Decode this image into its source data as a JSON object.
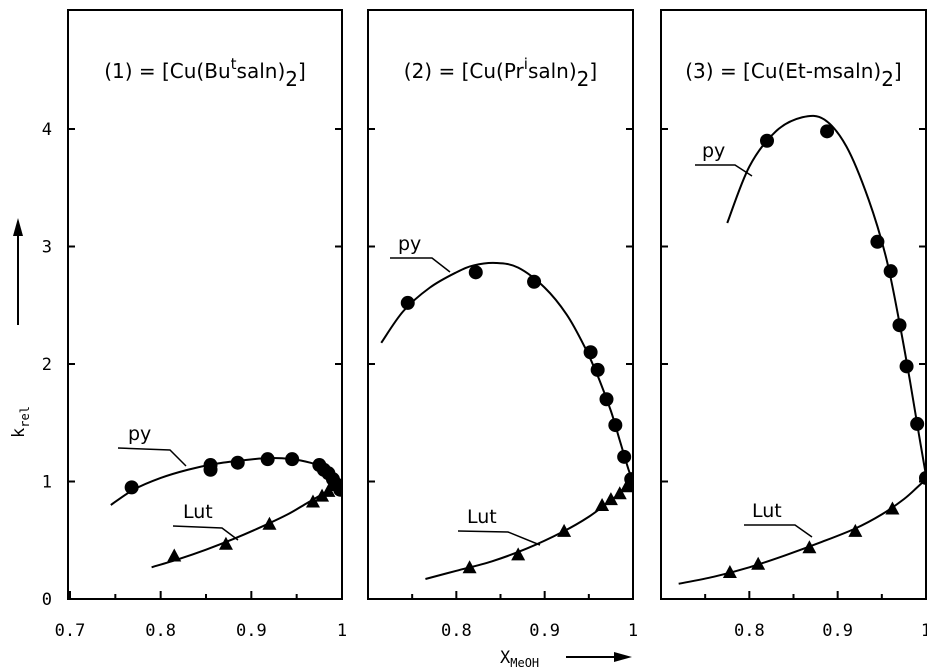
{
  "chart_data": [
    {
      "type": "line",
      "title": "(1) = [Cu(Bu^t saln)_2]",
      "title_parts": {
        "prefix": "(1) = [Cu(Bu",
        "sup": "t",
        "mid": "saln)",
        "sub": "2",
        "suffix": "]"
      },
      "xlabel": "X_MeOH",
      "ylabel": "k_rel",
      "xlim": [
        0.7,
        1.0
      ],
      "ylim": [
        0,
        4.9
      ],
      "x_ticks": [
        "0.7",
        "0.8",
        "0.9",
        "1"
      ],
      "y_ticks": [
        "0",
        "1",
        "2",
        "3",
        "4"
      ],
      "series": [
        {
          "name": "py",
          "marker": "circle",
          "points": [
            [
              0.768,
              0.95
            ],
            [
              0.855,
              1.1
            ],
            [
              0.855,
              1.14
            ],
            [
              0.885,
              1.16
            ],
            [
              0.918,
              1.19
            ],
            [
              0.945,
              1.19
            ],
            [
              0.975,
              1.14
            ],
            [
              0.98,
              1.1
            ],
            [
              0.985,
              1.07
            ],
            [
              0.99,
              1.02
            ],
            [
              0.995,
              0.97
            ],
            [
              0.998,
              0.93
            ]
          ],
          "curve": [
            [
              0.745,
              0.8
            ],
            [
              0.77,
              0.93
            ],
            [
              0.8,
              1.03
            ],
            [
              0.83,
              1.1
            ],
            [
              0.86,
              1.15
            ],
            [
              0.89,
              1.18
            ],
            [
              0.92,
              1.2
            ],
            [
              0.945,
              1.19
            ],
            [
              0.965,
              1.16
            ],
            [
              0.98,
              1.12
            ],
            [
              0.99,
              1.07
            ],
            [
              0.997,
              1.02
            ],
            [
              1.0,
              0.98
            ]
          ]
        },
        {
          "name": "Lut",
          "marker": "triangle",
          "points": [
            [
              0.815,
              0.37
            ],
            [
              0.872,
              0.47
            ],
            [
              0.92,
              0.64
            ],
            [
              0.968,
              0.83
            ],
            [
              0.978,
              0.88
            ],
            [
              0.985,
              0.92
            ],
            [
              0.99,
              0.97
            ]
          ],
          "curve": [
            [
              0.79,
              0.27
            ],
            [
              0.82,
              0.34
            ],
            [
              0.85,
              0.42
            ],
            [
              0.88,
              0.51
            ],
            [
              0.91,
              0.61
            ],
            [
              0.94,
              0.72
            ],
            [
              0.96,
              0.81
            ],
            [
              0.98,
              0.9
            ],
            [
              0.995,
              0.97
            ],
            [
              1.0,
              1.0
            ]
          ]
        }
      ]
    },
    {
      "type": "line",
      "title": "(2) = [Cu(Pr^i saln)_2]",
      "title_parts": {
        "prefix": "(2) = [Cu(Pr",
        "sup": "i",
        "mid": "saln)",
        "sub": "2",
        "suffix": "]"
      },
      "xlim": [
        0.7,
        1.0
      ],
      "ylim": [
        0,
        4.9
      ],
      "x_ticks": [
        "0.8",
        "0.9",
        "1"
      ],
      "series": [
        {
          "name": "py",
          "marker": "circle",
          "points": [
            [
              0.745,
              2.52
            ],
            [
              0.822,
              2.78
            ],
            [
              0.888,
              2.7
            ],
            [
              0.952,
              2.1
            ],
            [
              0.96,
              1.95
            ],
            [
              0.97,
              1.7
            ],
            [
              0.98,
              1.48
            ],
            [
              0.99,
              1.21
            ],
            [
              0.998,
              1.02
            ],
            [
              1.0,
              0.98
            ]
          ],
          "curve": [
            [
              0.715,
              2.18
            ],
            [
              0.74,
              2.45
            ],
            [
              0.77,
              2.65
            ],
            [
              0.8,
              2.78
            ],
            [
              0.82,
              2.84
            ],
            [
              0.845,
              2.86
            ],
            [
              0.87,
              2.82
            ],
            [
              0.9,
              2.65
            ],
            [
              0.925,
              2.42
            ],
            [
              0.945,
              2.15
            ],
            [
              0.96,
              1.9
            ],
            [
              0.975,
              1.6
            ],
            [
              0.985,
              1.35
            ],
            [
              0.995,
              1.1
            ],
            [
              1.0,
              1.0
            ]
          ]
        },
        {
          "name": "Lut",
          "marker": "triangle",
          "points": [
            [
              0.815,
              0.27
            ],
            [
              0.87,
              0.38
            ],
            [
              0.922,
              0.58
            ],
            [
              0.965,
              0.8
            ],
            [
              0.975,
              0.85
            ],
            [
              0.985,
              0.9
            ],
            [
              0.993,
              0.96
            ]
          ],
          "curve": [
            [
              0.765,
              0.17
            ],
            [
              0.8,
              0.24
            ],
            [
              0.84,
              0.32
            ],
            [
              0.88,
              0.43
            ],
            [
              0.92,
              0.57
            ],
            [
              0.95,
              0.7
            ],
            [
              0.975,
              0.84
            ],
            [
              0.99,
              0.93
            ],
            [
              1.0,
              1.0
            ]
          ]
        }
      ]
    },
    {
      "type": "line",
      "title": "(3) = [Cu(Et-msaln)_2]",
      "title_parts": {
        "prefix": "(3) = [Cu(Et-msaln)",
        "sup": "",
        "mid": "",
        "sub": "2",
        "suffix": "]"
      },
      "xlim": [
        0.7,
        1.0
      ],
      "ylim": [
        0,
        4.9
      ],
      "x_ticks": [
        "0.8",
        "0.9",
        "1"
      ],
      "series": [
        {
          "name": "py",
          "marker": "circle",
          "points": [
            [
              0.82,
              3.9
            ],
            [
              0.888,
              3.98
            ],
            [
              0.945,
              3.04
            ],
            [
              0.96,
              2.79
            ],
            [
              0.97,
              2.33
            ],
            [
              0.978,
              1.98
            ],
            [
              0.99,
              1.49
            ],
            [
              1.0,
              1.03
            ]
          ],
          "curve": [
            [
              0.775,
              3.2
            ],
            [
              0.8,
              3.68
            ],
            [
              0.83,
              3.98
            ],
            [
              0.86,
              4.1
            ],
            [
              0.885,
              4.08
            ],
            [
              0.91,
              3.85
            ],
            [
              0.935,
              3.4
            ],
            [
              0.955,
              2.9
            ],
            [
              0.97,
              2.35
            ],
            [
              0.982,
              1.85
            ],
            [
              0.992,
              1.4
            ],
            [
              1.0,
              1.05
            ]
          ]
        },
        {
          "name": "Lut",
          "marker": "triangle",
          "points": [
            [
              0.778,
              0.23
            ],
            [
              0.81,
              0.3
            ],
            [
              0.868,
              0.44
            ],
            [
              0.92,
              0.58
            ],
            [
              0.962,
              0.77
            ]
          ],
          "curve": [
            [
              0.72,
              0.13
            ],
            [
              0.76,
              0.19
            ],
            [
              0.8,
              0.27
            ],
            [
              0.84,
              0.37
            ],
            [
              0.88,
              0.48
            ],
            [
              0.92,
              0.6
            ],
            [
              0.95,
              0.72
            ],
            [
              0.975,
              0.85
            ],
            [
              0.99,
              0.95
            ],
            [
              1.0,
              1.02
            ]
          ]
        }
      ]
    }
  ]
}
